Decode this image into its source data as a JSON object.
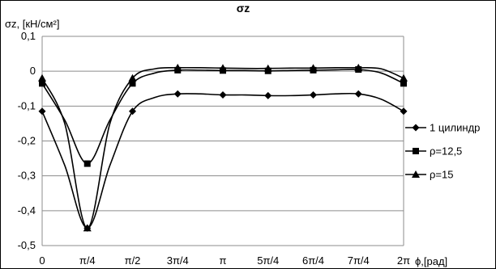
{
  "chart_data": {
    "type": "line",
    "title": "σz",
    "ylabel": "σz, [кН/см²]",
    "xlabel": "ϕ,[рад]",
    "ylim": [
      -0.5,
      0.1
    ],
    "xlim": [
      0,
      8
    ],
    "ytick_values": [
      0.1,
      0,
      -0.1,
      -0.2,
      -0.3,
      -0.4,
      -0.5
    ],
    "ytick_labels": [
      "0,1",
      "0",
      "-0,1",
      "-0,2",
      "-0,3",
      "-0,4",
      "-0,5"
    ],
    "xtick_values": [
      0,
      1,
      2,
      3,
      4,
      5,
      6,
      7,
      8
    ],
    "xtick_labels": [
      "0",
      "π/4",
      "π/2",
      "3π/4",
      "π",
      "5π/4",
      "6π/4",
      "7π/4",
      "2π"
    ],
    "grid": "horizontal",
    "legend_position": "right",
    "x": [
      0,
      0.5,
      1,
      1.5,
      2,
      2.5,
      3,
      3.5,
      4,
      4.5,
      5,
      5.5,
      6,
      6.5,
      7,
      7.5,
      8
    ],
    "series": [
      {
        "name": "1 цилиндр",
        "marker": "diamond",
        "values": [
          -0.115,
          -0.27,
          -0.45,
          -0.27,
          -0.115,
          -0.075,
          -0.065,
          -0.065,
          -0.068,
          -0.068,
          -0.07,
          -0.07,
          -0.068,
          -0.065,
          -0.065,
          -0.08,
          -0.115
        ]
      },
      {
        "name": "ρ=12,5",
        "marker": "square",
        "values": [
          -0.035,
          -0.14,
          -0.265,
          -0.14,
          -0.035,
          -0.005,
          0.003,
          0.003,
          0.002,
          0.002,
          0.001,
          0.002,
          0.003,
          0.004,
          0.005,
          -0.005,
          -0.035
        ]
      },
      {
        "name": "ρ=15",
        "marker": "triangle",
        "values": [
          -0.02,
          -0.15,
          -0.45,
          -0.15,
          -0.02,
          0.007,
          0.01,
          0.01,
          0.009,
          0.008,
          0.008,
          0.009,
          0.009,
          0.01,
          0.01,
          0.007,
          -0.02
        ]
      }
    ]
  }
}
